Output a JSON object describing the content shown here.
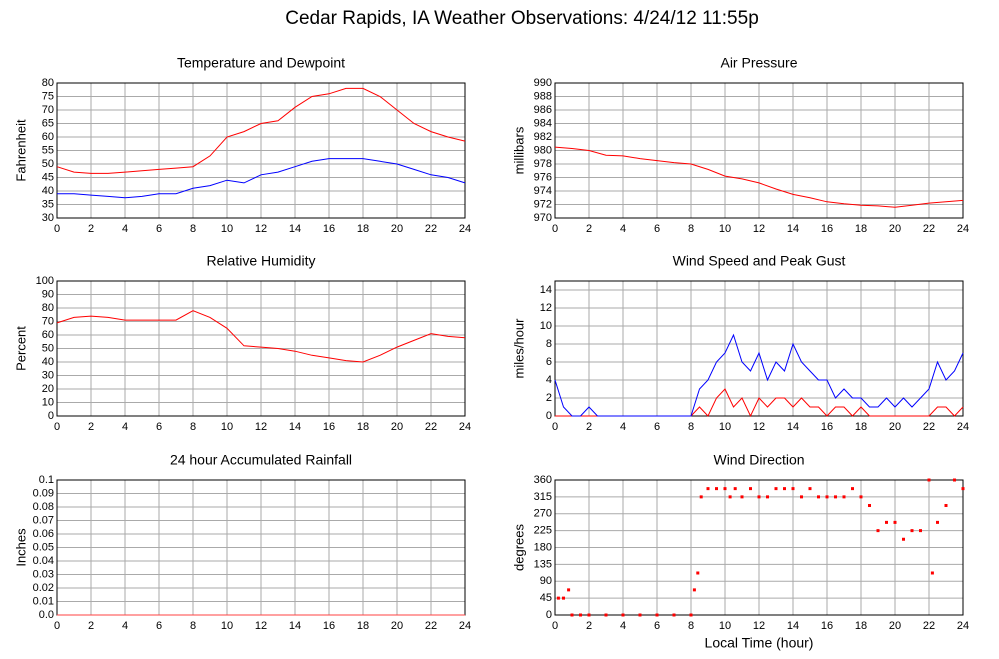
{
  "title": "Cedar Rapids, IA Weather Observations: 4/24/12 11:55p",
  "chart_data": [
    {
      "type": "line",
      "title": "Temperature and Dewpoint",
      "ylabel": "Fahrenheit",
      "x": [
        0,
        1,
        2,
        3,
        4,
        5,
        6,
        7,
        8,
        9,
        10,
        11,
        12,
        13,
        14,
        15,
        16,
        17,
        18,
        19,
        20,
        21,
        22,
        23,
        24
      ],
      "series": [
        {
          "color": "#ff0000",
          "values": [
            49,
            47,
            46.5,
            46.5,
            47,
            47.5,
            48,
            48.5,
            49,
            53,
            60,
            62,
            65,
            66,
            71,
            75,
            76,
            78,
            78,
            75,
            70,
            65,
            62,
            60,
            58.5
          ]
        },
        {
          "color": "#0000ff",
          "values": [
            39,
            39,
            38.5,
            38,
            37.5,
            38,
            39,
            39,
            41,
            42,
            44,
            43,
            46,
            47,
            49,
            51,
            52,
            52,
            52,
            51,
            50,
            48,
            46,
            45,
            43
          ]
        }
      ],
      "xlim": [
        0,
        24
      ],
      "ylim": [
        30,
        80
      ],
      "xticks": [
        0,
        2,
        4,
        6,
        8,
        10,
        12,
        14,
        16,
        18,
        20,
        22,
        24
      ],
      "yticks": [
        30,
        35,
        40,
        45,
        50,
        55,
        60,
        65,
        70,
        75,
        80
      ],
      "grid": true
    },
    {
      "type": "line",
      "title": "Air Pressure",
      "ylabel": "millibars",
      "x": [
        0,
        1,
        2,
        3,
        4,
        5,
        6,
        7,
        8,
        9,
        10,
        11,
        12,
        13,
        14,
        15,
        16,
        17,
        18,
        19,
        20,
        21,
        22,
        23,
        24
      ],
      "series": [
        {
          "color": "#ff0000",
          "values": [
            980.5,
            980.3,
            980,
            979.3,
            979.2,
            978.8,
            978.5,
            978.2,
            978,
            977.2,
            976.2,
            975.8,
            975.2,
            974.3,
            973.5,
            973,
            972.4,
            972.1,
            971.9,
            971.8,
            971.6,
            971.9,
            972.2,
            972.4,
            972.6
          ]
        }
      ],
      "xlim": [
        0,
        24
      ],
      "ylim": [
        970,
        990
      ],
      "xticks": [
        0,
        2,
        4,
        6,
        8,
        10,
        12,
        14,
        16,
        18,
        20,
        22,
        24
      ],
      "yticks": [
        970,
        972,
        974,
        976,
        978,
        980,
        982,
        984,
        986,
        988,
        990
      ],
      "grid": true
    },
    {
      "type": "line",
      "title": "Relative Humidity",
      "ylabel": "Percent",
      "x": [
        0,
        1,
        2,
        3,
        4,
        5,
        6,
        7,
        8,
        9,
        10,
        11,
        12,
        13,
        14,
        15,
        16,
        17,
        18,
        19,
        20,
        21,
        22,
        23,
        24
      ],
      "series": [
        {
          "color": "#ff0000",
          "values": [
            69,
            73,
            74,
            73,
            71,
            71,
            71,
            71,
            78,
            73,
            65,
            52,
            51,
            50,
            48,
            45,
            43,
            41,
            40,
            45,
            51,
            56,
            61,
            59,
            58
          ]
        }
      ],
      "xlim": [
        0,
        24
      ],
      "ylim": [
        0,
        100
      ],
      "xticks": [
        0,
        2,
        4,
        6,
        8,
        10,
        12,
        14,
        16,
        18,
        20,
        22,
        24
      ],
      "yticks": [
        0,
        10,
        20,
        30,
        40,
        50,
        60,
        70,
        80,
        90,
        100
      ],
      "grid": true
    },
    {
      "type": "line",
      "title": "Wind Speed and Peak Gust",
      "ylabel": "miles/hour",
      "x": [
        0,
        0.5,
        1,
        1.5,
        2,
        2.5,
        3,
        3.5,
        4,
        4.5,
        5,
        5.5,
        6,
        6.5,
        7,
        7.5,
        8,
        8.5,
        9,
        9.5,
        10,
        10.5,
        11,
        11.5,
        12,
        12.5,
        13,
        13.5,
        14,
        14.5,
        15,
        15.5,
        16,
        16.5,
        17,
        17.5,
        18,
        18.5,
        19,
        19.5,
        20,
        20.5,
        21,
        21.5,
        22,
        22.5,
        23,
        23.5,
        24
      ],
      "series": [
        {
          "color": "#ff0000",
          "values": [
            0,
            0,
            0,
            0,
            0,
            0,
            0,
            0,
            0,
            0,
            0,
            0,
            0,
            0,
            0,
            0,
            0,
            1,
            0,
            2,
            3,
            1,
            2,
            0,
            2,
            1,
            2,
            2,
            1,
            2,
            1,
            1,
            0,
            1,
            1,
            0,
            1,
            0,
            0,
            0,
            0,
            0,
            0,
            0,
            0,
            1,
            1,
            0,
            1
          ]
        },
        {
          "color": "#0000ff",
          "values": [
            4,
            1,
            0,
            0,
            1,
            0,
            0,
            0,
            0,
            0,
            0,
            0,
            0,
            0,
            0,
            0,
            0,
            3,
            4,
            6,
            7,
            9,
            6,
            5,
            7,
            4,
            6,
            5,
            8,
            6,
            5,
            4,
            4,
            2,
            3,
            2,
            2,
            1,
            1,
            2,
            1,
            2,
            1,
            2,
            3,
            6,
            4,
            5,
            7
          ]
        }
      ],
      "xlim": [
        0,
        24
      ],
      "ylim": [
        0,
        15
      ],
      "xticks": [
        0,
        2,
        4,
        6,
        8,
        10,
        12,
        14,
        16,
        18,
        20,
        22,
        24
      ],
      "yticks": [
        0,
        2,
        4,
        6,
        8,
        10,
        12,
        14
      ],
      "grid": true
    },
    {
      "type": "line",
      "title": "24 hour Accumulated Rainfall",
      "ylabel": "Inches",
      "x": [
        0,
        24
      ],
      "series": [
        {
          "color": "#ff4040",
          "values": [
            0,
            0
          ]
        }
      ],
      "xlim": [
        0,
        24
      ],
      "ylim": [
        0,
        0.1
      ],
      "xticks": [
        0,
        2,
        4,
        6,
        8,
        10,
        12,
        14,
        16,
        18,
        20,
        22,
        24
      ],
      "yticks": [
        {
          "value": 0,
          "label": "0.0"
        },
        0.01,
        0.02,
        0.03,
        0.04,
        0.05,
        0.06,
        0.07,
        0.08,
        0.09,
        0.1
      ],
      "grid": true
    },
    {
      "type": "scatter",
      "title": "Wind Direction",
      "ylabel": "degrees",
      "xlabel": "Local Time (hour)",
      "x": [
        0.2,
        0.5,
        0.8,
        1,
        1.5,
        2,
        3,
        4,
        5,
        6,
        7,
        8,
        8.2,
        8.4,
        8.6,
        9,
        9.5,
        10,
        10.3,
        10.6,
        11,
        11.5,
        12,
        12.5,
        13,
        13.5,
        14,
        14.5,
        15,
        15.5,
        16,
        16.5,
        17,
        17.5,
        18,
        18.5,
        19,
        19.5,
        20,
        20.5,
        21,
        21.5,
        22,
        22.2,
        22.5,
        23,
        23.5,
        24
      ],
      "series": [
        {
          "color": "#ff0000",
          "values": [
            45,
            45,
            67,
            0,
            0,
            0,
            0,
            0,
            0,
            0,
            0,
            0,
            67,
            112,
            315,
            337,
            337,
            337,
            315,
            337,
            315,
            337,
            315,
            315,
            337,
            337,
            337,
            315,
            337,
            315,
            315,
            315,
            315,
            337,
            315,
            292,
            225,
            247,
            247,
            202,
            225,
            225,
            360,
            112,
            247,
            292,
            360,
            337
          ]
        }
      ],
      "xlim": [
        0,
        24
      ],
      "ylim": [
        0,
        360
      ],
      "xticks": [
        0,
        2,
        4,
        6,
        8,
        10,
        12,
        14,
        16,
        18,
        20,
        22,
        24
      ],
      "yticks": [
        0,
        45,
        90,
        135,
        180,
        225,
        270,
        315,
        360
      ],
      "grid": true
    }
  ]
}
